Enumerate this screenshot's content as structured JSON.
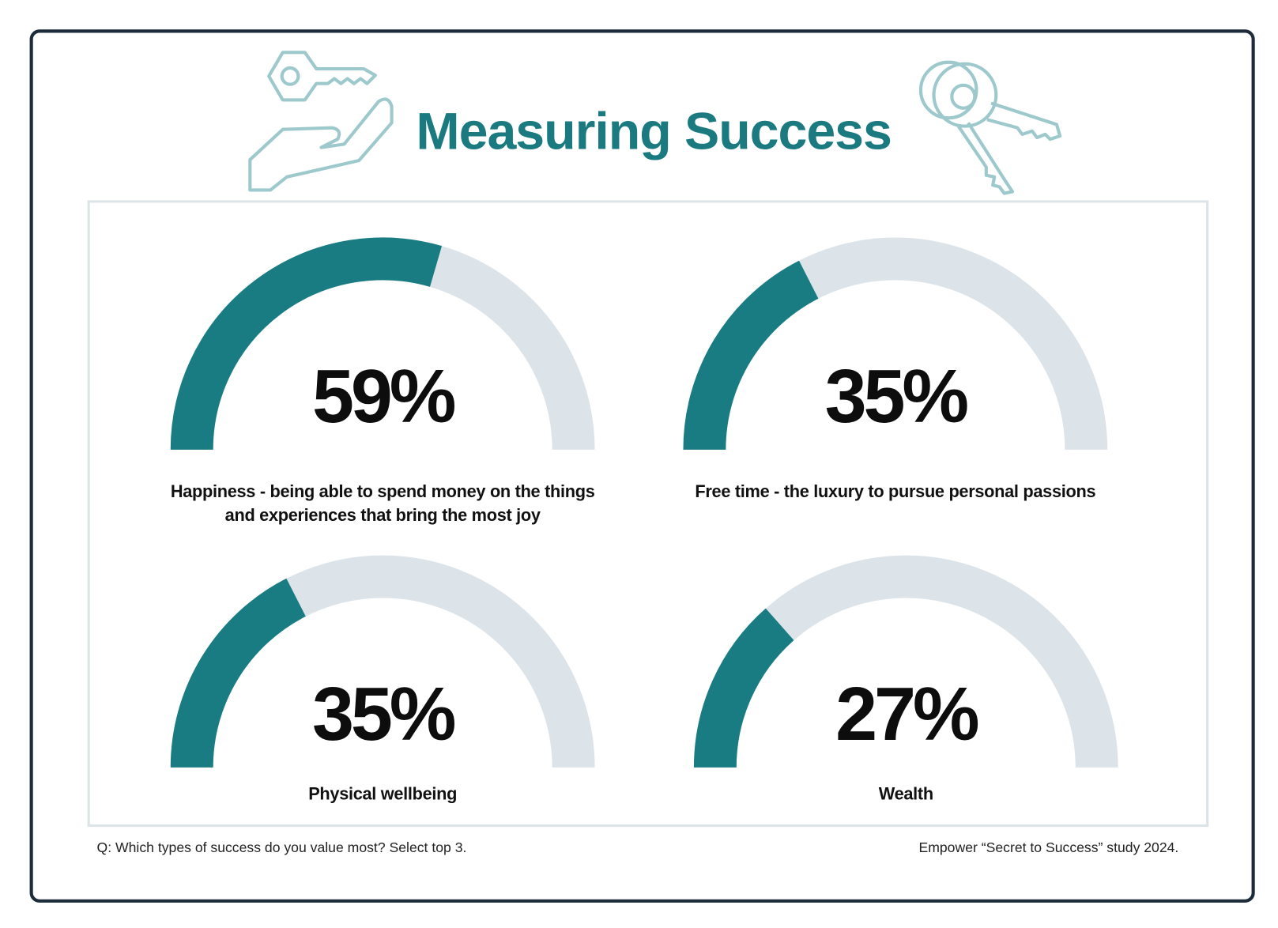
{
  "title": "Measuring Success",
  "chart_data": [
    {
      "type": "gauge",
      "categories": [
        "Happiness - being able to spend money on the things and experiences that bring the most joy"
      ],
      "values": [
        59
      ],
      "value_labels": [
        "59%"
      ],
      "ylim": [
        0,
        100
      ],
      "color": "#187c82",
      "track_color": "#dde4e9"
    },
    {
      "type": "gauge",
      "categories": [
        "Free time - the luxury to pursue personal passions"
      ],
      "values": [
        35
      ],
      "value_labels": [
        "35%"
      ],
      "ylim": [
        0,
        100
      ],
      "color": "#187c82",
      "track_color": "#dde4e9"
    },
    {
      "type": "gauge",
      "categories": [
        "Physical wellbeing"
      ],
      "values": [
        35
      ],
      "value_labels": [
        "35%"
      ],
      "ylim": [
        0,
        100
      ],
      "color": "#187c82",
      "track_color": "#dde4e9"
    },
    {
      "type": "gauge",
      "categories": [
        "Wealth"
      ],
      "values": [
        27
      ],
      "value_labels": [
        "27%"
      ],
      "ylim": [
        0,
        100
      ],
      "color": "#187c82",
      "track_color": "#dde4e9"
    }
  ],
  "footnotes": {
    "question": "Q: Which types of success do you value most? Select top 3.",
    "source": "Empower “Secret to Success” study 2024."
  }
}
